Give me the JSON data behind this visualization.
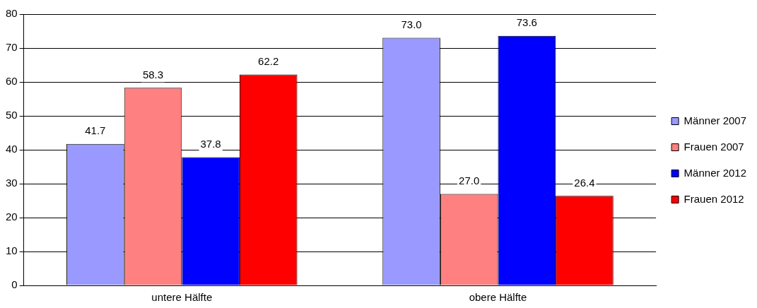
{
  "chart_data": {
    "type": "bar",
    "categories": [
      "untere Hälfte",
      "obere Hälfte"
    ],
    "series": [
      {
        "name": "Männer 2007",
        "color": "#9999ff",
        "values": [
          41.7,
          73.0
        ],
        "value_labels": [
          "41.7",
          "73.0"
        ]
      },
      {
        "name": "Frauen 2007",
        "color": "#ff8080",
        "values": [
          58.3,
          27.0
        ],
        "value_labels": [
          "58.3",
          "27.0"
        ]
      },
      {
        "name": "Männer 2012",
        "color": "#0000ff",
        "values": [
          37.8,
          73.6
        ],
        "value_labels": [
          "37.8",
          "73.6"
        ]
      },
      {
        "name": "Frauen 2012",
        "color": "#ff0000",
        "values": [
          62.2,
          26.4
        ],
        "value_labels": [
          "62.2",
          "26.4"
        ]
      }
    ],
    "ylim": [
      0,
      80
    ],
    "yticks": [
      0,
      10,
      20,
      30,
      40,
      50,
      60,
      70,
      80
    ],
    "grid": "y",
    "legend": "right"
  }
}
